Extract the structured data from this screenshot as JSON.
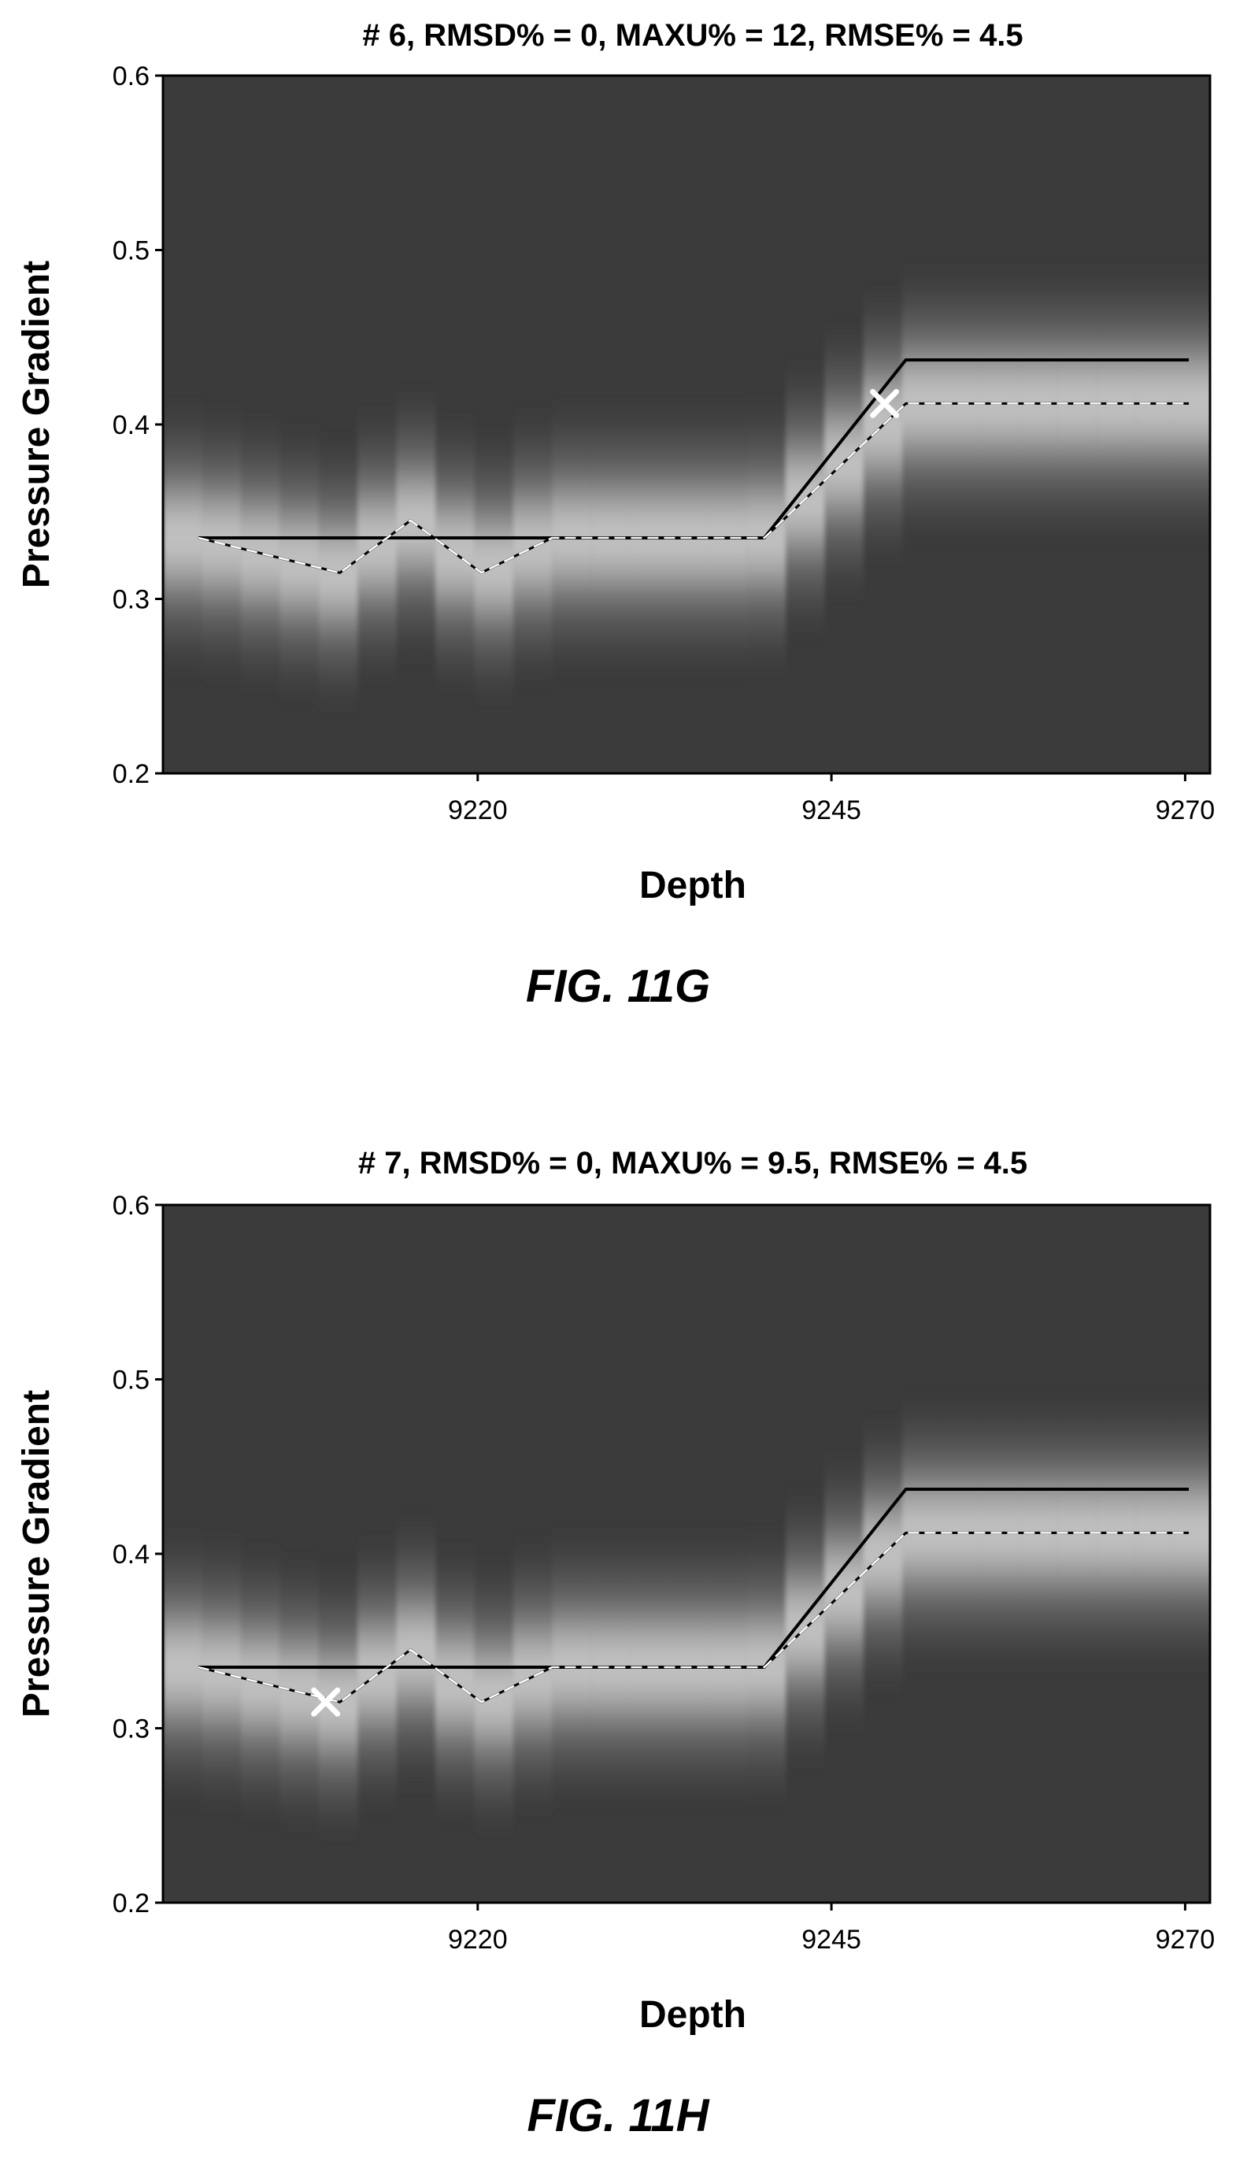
{
  "chart_data": [
    {
      "type": "heatmap",
      "title": "# 6, RMSD% = 0, MAXU% = 12, RMSE% = 4.5",
      "xlabel": "Depth",
      "ylabel": "Pressure Gradient",
      "caption": "FIG. 11G",
      "xlim": [
        9197.5,
        9271.5
      ],
      "ylim": [
        0.2,
        0.6
      ],
      "xticks": [
        9220,
        9245,
        9270
      ],
      "yticks": [
        0.2,
        0.3,
        0.4,
        0.5,
        0.6
      ],
      "xtick_labels": [
        "9220",
        "9245",
        "9270"
      ],
      "ytick_labels": [
        "0.2",
        "0.3",
        "0.4",
        "0.5",
        "0.6"
      ],
      "colormap": "grayscale",
      "background_color": "#3b3b3b",
      "series": [
        {
          "style": "solid-black",
          "x": [
            9200,
            9225,
            9240,
            9250,
            9270
          ],
          "y": [
            0.335,
            0.335,
            0.335,
            0.437,
            0.437
          ]
        },
        {
          "style": "dashed-white",
          "x": [
            9200,
            9210,
            9215,
            9220,
            9225,
            9240,
            9250,
            9270
          ],
          "y": [
            0.335,
            0.315,
            0.345,
            0.315,
            0.335,
            0.335,
            0.412,
            0.412
          ]
        }
      ],
      "marker": {
        "symbol": "x",
        "x": 9248.5,
        "y": 0.412,
        "color": "#ffffff"
      }
    },
    {
      "type": "heatmap",
      "title": "# 7, RMSD% = 0, MAXU% = 9.5, RMSE% = 4.5",
      "xlabel": "Depth",
      "ylabel": "Pressure Gradient",
      "caption": "FIG. 11H",
      "xlim": [
        9197.5,
        9271.5
      ],
      "ylim": [
        0.2,
        0.6
      ],
      "xticks": [
        9220,
        9245,
        9270
      ],
      "yticks": [
        0.2,
        0.3,
        0.4,
        0.5,
        0.6
      ],
      "xtick_labels": [
        "9220",
        "9245",
        "9270"
      ],
      "ytick_labels": [
        "0.2",
        "0.3",
        "0.4",
        "0.5",
        "0.6"
      ],
      "colormap": "grayscale",
      "background_color": "#3b3b3b",
      "series": [
        {
          "style": "solid-black",
          "x": [
            9200,
            9225,
            9240,
            9250,
            9270
          ],
          "y": [
            0.335,
            0.335,
            0.335,
            0.437,
            0.437
          ]
        },
        {
          "style": "dashed-white",
          "x": [
            9200,
            9210,
            9215,
            9220,
            9225,
            9240,
            9250,
            9270
          ],
          "y": [
            0.335,
            0.315,
            0.345,
            0.315,
            0.335,
            0.335,
            0.412,
            0.412
          ]
        }
      ],
      "marker": {
        "symbol": "x",
        "x": 9209,
        "y": 0.315,
        "color": "#ffffff"
      }
    }
  ]
}
